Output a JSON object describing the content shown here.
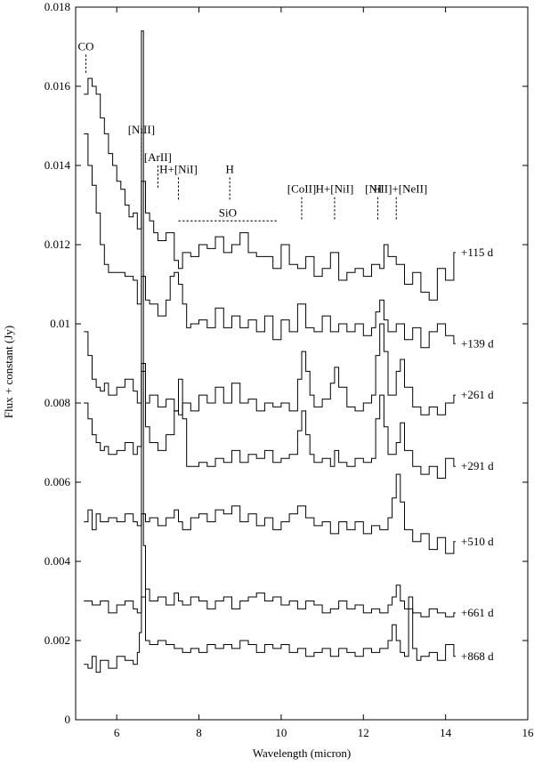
{
  "chart_data": {
    "type": "line",
    "step": true,
    "title": "",
    "xlabel": "Wavelength (micron)",
    "ylabel": "Flux + constant (Jy)",
    "xlim": [
      5,
      16
    ],
    "ylim": [
      0,
      0.018
    ],
    "xticks": [
      6,
      8,
      10,
      12,
      14,
      16
    ],
    "yticks": [
      0,
      0.002,
      0.004,
      0.006,
      0.008,
      0.01,
      0.012,
      0.014,
      0.016,
      0.018
    ],
    "ytick_labels": [
      "0",
      "0.002",
      "0.004",
      "0.006",
      "0.008",
      "0.01",
      "0.012",
      "0.014",
      "0.016",
      "0.018"
    ],
    "grid": false,
    "series": [
      {
        "name": "+115 d",
        "x": [
          5.2,
          5.3,
          5.4,
          5.5,
          5.6,
          5.7,
          5.8,
          5.9,
          6.0,
          6.1,
          6.2,
          6.3,
          6.4,
          6.5,
          6.6,
          6.7,
          6.8,
          6.9,
          7.0,
          7.2,
          7.4,
          7.5,
          7.6,
          7.8,
          8.0,
          8.2,
          8.4,
          8.6,
          8.8,
          9.0,
          9.2,
          9.4,
          9.6,
          9.8,
          10.0,
          10.2,
          10.4,
          10.6,
          10.8,
          11.0,
          11.2,
          11.4,
          11.6,
          11.8,
          12.0,
          12.2,
          12.4,
          12.5,
          12.6,
          12.8,
          13.0,
          13.2,
          13.4,
          13.6,
          13.8,
          14.0,
          14.2
        ],
        "y": [
          0.0158,
          0.0162,
          0.016,
          0.0158,
          0.0152,
          0.0148,
          0.0143,
          0.014,
          0.0136,
          0.0134,
          0.013,
          0.0127,
          0.0128,
          0.0124,
          0.0136,
          0.0128,
          0.0126,
          0.0123,
          0.0121,
          0.0123,
          0.0116,
          0.0114,
          0.0118,
          0.0117,
          0.012,
          0.0119,
          0.0122,
          0.0118,
          0.012,
          0.0123,
          0.0118,
          0.0117,
          0.0117,
          0.0114,
          0.012,
          0.0115,
          0.0114,
          0.0117,
          0.0112,
          0.0114,
          0.0118,
          0.0111,
          0.0113,
          0.0114,
          0.0112,
          0.0115,
          0.0114,
          0.012,
          0.0117,
          0.0115,
          0.011,
          0.0113,
          0.0108,
          0.0106,
          0.0114,
          0.0111,
          0.0118
        ]
      },
      {
        "name": "+139 d",
        "x": [
          5.2,
          5.3,
          5.4,
          5.5,
          5.6,
          5.7,
          5.8,
          6.0,
          6.2,
          6.4,
          6.5,
          6.6,
          6.7,
          6.8,
          7.0,
          7.2,
          7.3,
          7.4,
          7.5,
          7.6,
          7.7,
          7.8,
          8.0,
          8.2,
          8.4,
          8.6,
          8.8,
          9.0,
          9.2,
          9.4,
          9.6,
          9.8,
          10.0,
          10.2,
          10.4,
          10.6,
          10.8,
          11.0,
          11.2,
          11.4,
          11.6,
          11.8,
          12.0,
          12.2,
          12.3,
          12.4,
          12.5,
          12.6,
          12.8,
          13.0,
          13.2,
          13.4,
          13.6,
          13.8,
          14.0,
          14.2
        ],
        "y": [
          0.0148,
          0.014,
          0.0135,
          0.0128,
          0.012,
          0.0115,
          0.0113,
          0.0113,
          0.0112,
          0.0111,
          0.0105,
          0.0112,
          0.0106,
          0.0105,
          0.0102,
          0.0106,
          0.0112,
          0.0113,
          0.011,
          0.0105,
          0.0099,
          0.01,
          0.0101,
          0.0099,
          0.0104,
          0.0099,
          0.0102,
          0.0099,
          0.0101,
          0.0098,
          0.0102,
          0.0096,
          0.0101,
          0.0098,
          0.0105,
          0.0099,
          0.0098,
          0.0102,
          0.0098,
          0.01,
          0.0098,
          0.01,
          0.0097,
          0.0099,
          0.0103,
          0.0106,
          0.0101,
          0.0098,
          0.01,
          0.0096,
          0.0099,
          0.0094,
          0.0098,
          0.01,
          0.0097,
          0.0095
        ]
      },
      {
        "name": "+261 d",
        "x": [
          5.2,
          5.3,
          5.4,
          5.5,
          5.6,
          5.7,
          5.8,
          6.0,
          6.2,
          6.4,
          6.5,
          6.6,
          6.7,
          6.8,
          7.0,
          7.2,
          7.4,
          7.5,
          7.6,
          7.8,
          8.0,
          8.2,
          8.4,
          8.6,
          8.8,
          9.0,
          9.2,
          9.4,
          9.6,
          9.8,
          10.0,
          10.2,
          10.4,
          10.5,
          10.6,
          10.7,
          10.8,
          11.0,
          11.2,
          11.3,
          11.4,
          11.6,
          11.8,
          12.0,
          12.2,
          12.3,
          12.4,
          12.5,
          12.6,
          12.8,
          12.9,
          13.0,
          13.2,
          13.4,
          13.6,
          13.8,
          14.0,
          14.2
        ],
        "y": [
          0.0098,
          0.0092,
          0.0086,
          0.0084,
          0.0083,
          0.0085,
          0.0082,
          0.0084,
          0.0086,
          0.0083,
          0.008,
          0.009,
          0.008,
          0.0082,
          0.0079,
          0.0081,
          0.0078,
          0.0077,
          0.008,
          0.0078,
          0.0082,
          0.008,
          0.0084,
          0.008,
          0.0085,
          0.008,
          0.0081,
          0.0078,
          0.008,
          0.0079,
          0.008,
          0.0078,
          0.0086,
          0.0093,
          0.0088,
          0.0082,
          0.0079,
          0.0081,
          0.0085,
          0.0089,
          0.0084,
          0.0079,
          0.0078,
          0.008,
          0.0082,
          0.0092,
          0.01,
          0.0093,
          0.0082,
          0.0088,
          0.0091,
          0.0084,
          0.0079,
          0.0077,
          0.0079,
          0.0077,
          0.008,
          0.0082
        ]
      },
      {
        "name": "+291 d",
        "x": [
          5.2,
          5.3,
          5.4,
          5.5,
          5.6,
          5.7,
          5.8,
          6.0,
          6.2,
          6.4,
          6.5,
          6.6,
          6.7,
          6.8,
          7.0,
          7.2,
          7.4,
          7.5,
          7.6,
          7.7,
          7.8,
          8.0,
          8.2,
          8.4,
          8.6,
          8.8,
          9.0,
          9.2,
          9.4,
          9.6,
          9.8,
          10.0,
          10.2,
          10.4,
          10.5,
          10.6,
          10.7,
          10.8,
          11.0,
          11.2,
          11.3,
          11.4,
          11.6,
          11.8,
          12.0,
          12.2,
          12.3,
          12.4,
          12.5,
          12.6,
          12.8,
          12.9,
          13.0,
          13.2,
          13.4,
          13.6,
          13.8,
          14.0,
          14.2
        ],
        "y": [
          0.008,
          0.0076,
          0.0072,
          0.007,
          0.0068,
          0.0069,
          0.0067,
          0.0068,
          0.007,
          0.0067,
          0.0069,
          0.0088,
          0.0074,
          0.007,
          0.0068,
          0.0072,
          0.0078,
          0.0086,
          0.0076,
          0.0064,
          0.0064,
          0.0065,
          0.0064,
          0.0066,
          0.0065,
          0.0068,
          0.0065,
          0.0067,
          0.0066,
          0.0068,
          0.0065,
          0.0066,
          0.0067,
          0.0073,
          0.0078,
          0.0072,
          0.0067,
          0.0065,
          0.0066,
          0.0064,
          0.0068,
          0.0065,
          0.0064,
          0.0066,
          0.0065,
          0.0066,
          0.0076,
          0.0082,
          0.0074,
          0.0067,
          0.007,
          0.0075,
          0.0068,
          0.0064,
          0.0062,
          0.0064,
          0.0061,
          0.0066,
          0.0064
        ]
      },
      {
        "name": "+510 d",
        "x": [
          5.2,
          5.3,
          5.4,
          5.5,
          5.6,
          5.8,
          6.0,
          6.2,
          6.4,
          6.5,
          6.6,
          6.7,
          6.8,
          7.0,
          7.2,
          7.4,
          7.5,
          7.6,
          7.8,
          8.0,
          8.2,
          8.4,
          8.6,
          8.8,
          9.0,
          9.2,
          9.4,
          9.6,
          9.8,
          10.0,
          10.2,
          10.4,
          10.6,
          10.8,
          11.0,
          11.2,
          11.4,
          11.6,
          11.8,
          12.0,
          12.2,
          12.4,
          12.6,
          12.7,
          12.8,
          12.9,
          13.0,
          13.2,
          13.4,
          13.6,
          13.8,
          14.0,
          14.2
        ],
        "y": [
          0.005,
          0.0053,
          0.0048,
          0.0052,
          0.005,
          0.0051,
          0.005,
          0.0052,
          0.005,
          0.0049,
          0.0052,
          0.005,
          0.0051,
          0.0049,
          0.0051,
          0.0053,
          0.005,
          0.0048,
          0.0051,
          0.0052,
          0.005,
          0.0053,
          0.0052,
          0.0054,
          0.005,
          0.0052,
          0.0049,
          0.0051,
          0.0048,
          0.005,
          0.0052,
          0.0054,
          0.0051,
          0.0049,
          0.005,
          0.0047,
          0.005,
          0.0048,
          0.005,
          0.0047,
          0.0049,
          0.0048,
          0.0051,
          0.0056,
          0.0062,
          0.0055,
          0.0048,
          0.0045,
          0.0047,
          0.0043,
          0.0046,
          0.0042,
          0.0045
        ]
      },
      {
        "name": "+661 d",
        "x": [
          5.2,
          5.4,
          5.6,
          5.8,
          6.0,
          6.2,
          6.4,
          6.5,
          6.6,
          6.7,
          6.8,
          7.0,
          7.2,
          7.4,
          7.5,
          7.6,
          7.8,
          8.0,
          8.2,
          8.4,
          8.6,
          8.8,
          9.0,
          9.2,
          9.4,
          9.6,
          9.8,
          10.0,
          10.2,
          10.4,
          10.6,
          10.8,
          11.0,
          11.2,
          11.4,
          11.6,
          11.8,
          12.0,
          12.2,
          12.4,
          12.6,
          12.7,
          12.8,
          12.9,
          13.0,
          13.2,
          13.4,
          13.6,
          13.8,
          14.0,
          14.2
        ],
        "y": [
          0.003,
          0.0029,
          0.003,
          0.0027,
          0.0029,
          0.003,
          0.0028,
          0.0027,
          0.0031,
          0.0033,
          0.003,
          0.0031,
          0.0029,
          0.0032,
          0.003,
          0.0029,
          0.0031,
          0.003,
          0.0028,
          0.003,
          0.0031,
          0.0028,
          0.003,
          0.0031,
          0.0032,
          0.003,
          0.0031,
          0.0029,
          0.003,
          0.0028,
          0.003,
          0.0029,
          0.0027,
          0.0028,
          0.003,
          0.0028,
          0.0029,
          0.0027,
          0.0028,
          0.0027,
          0.0029,
          0.0031,
          0.0034,
          0.003,
          0.0028,
          0.0027,
          0.0026,
          0.0028,
          0.0027,
          0.0026,
          0.0027
        ]
      },
      {
        "name": "+868 d",
        "x": [
          5.2,
          5.3,
          5.4,
          5.5,
          5.6,
          5.8,
          6.0,
          6.2,
          6.4,
          6.5,
          6.55,
          6.6,
          6.65,
          6.7,
          6.8,
          7.0,
          7.2,
          7.4,
          7.6,
          7.8,
          8.0,
          8.2,
          8.4,
          8.6,
          8.8,
          9.0,
          9.2,
          9.4,
          9.6,
          9.8,
          10.0,
          10.2,
          10.4,
          10.6,
          10.8,
          11.0,
          11.2,
          11.4,
          11.6,
          11.8,
          12.0,
          12.2,
          12.4,
          12.6,
          12.7,
          12.8,
          12.9,
          13.0,
          13.1,
          13.2,
          13.3,
          13.4,
          13.6,
          13.8,
          14.0,
          14.2
        ],
        "y": [
          0.0014,
          0.0013,
          0.0016,
          0.0012,
          0.0015,
          0.0013,
          0.0016,
          0.0015,
          0.0014,
          0.0017,
          0.0022,
          0.0174,
          0.0044,
          0.002,
          0.0019,
          0.002,
          0.0019,
          0.0018,
          0.0017,
          0.0018,
          0.0017,
          0.0019,
          0.0018,
          0.0019,
          0.0018,
          0.002,
          0.0019,
          0.0017,
          0.0019,
          0.0018,
          0.0019,
          0.0017,
          0.0018,
          0.0016,
          0.0017,
          0.0018,
          0.0016,
          0.0018,
          0.0017,
          0.0016,
          0.0018,
          0.0017,
          0.0018,
          0.002,
          0.0024,
          0.002,
          0.0017,
          0.0016,
          0.0031,
          0.0018,
          0.0015,
          0.0016,
          0.0017,
          0.0015,
          0.0019,
          0.0016
        ]
      }
    ],
    "annotations": [
      {
        "text": "CO",
        "x": 5.25,
        "y_marker": [
          0.0168,
          0.0163
        ]
      },
      {
        "text": "[NiII]",
        "x": 6.6,
        "y_marker": [
          0.0147,
          0.0141
        ]
      },
      {
        "text": "[ArII]",
        "x": 7.0,
        "y_marker": [
          0.014,
          0.0134
        ]
      },
      {
        "text": "H+[NiI]",
        "x": 7.5,
        "y_marker": [
          0.0137,
          0.0131
        ]
      },
      {
        "text": "H",
        "x": 8.75,
        "y_marker": [
          0.0137,
          0.0131
        ]
      },
      {
        "text": "SiO",
        "x": 8.7,
        "y_marker": null
      },
      {
        "text": "[CoII]",
        "x": 10.5,
        "y_marker": [
          0.0132,
          0.0126
        ]
      },
      {
        "text": "H+[NiI]",
        "x": 11.3,
        "y_marker": [
          0.0132,
          0.0126
        ]
      },
      {
        "text": "H",
        "x": 12.35,
        "y_marker": [
          0.0132,
          0.0126
        ]
      },
      {
        "text": "[NiII]+[NeII]",
        "x": 12.8,
        "y_marker": [
          0.0132,
          0.0126
        ]
      }
    ],
    "siO_band": {
      "x": [
        7.5,
        9.9
      ],
      "y": 0.0126
    }
  }
}
